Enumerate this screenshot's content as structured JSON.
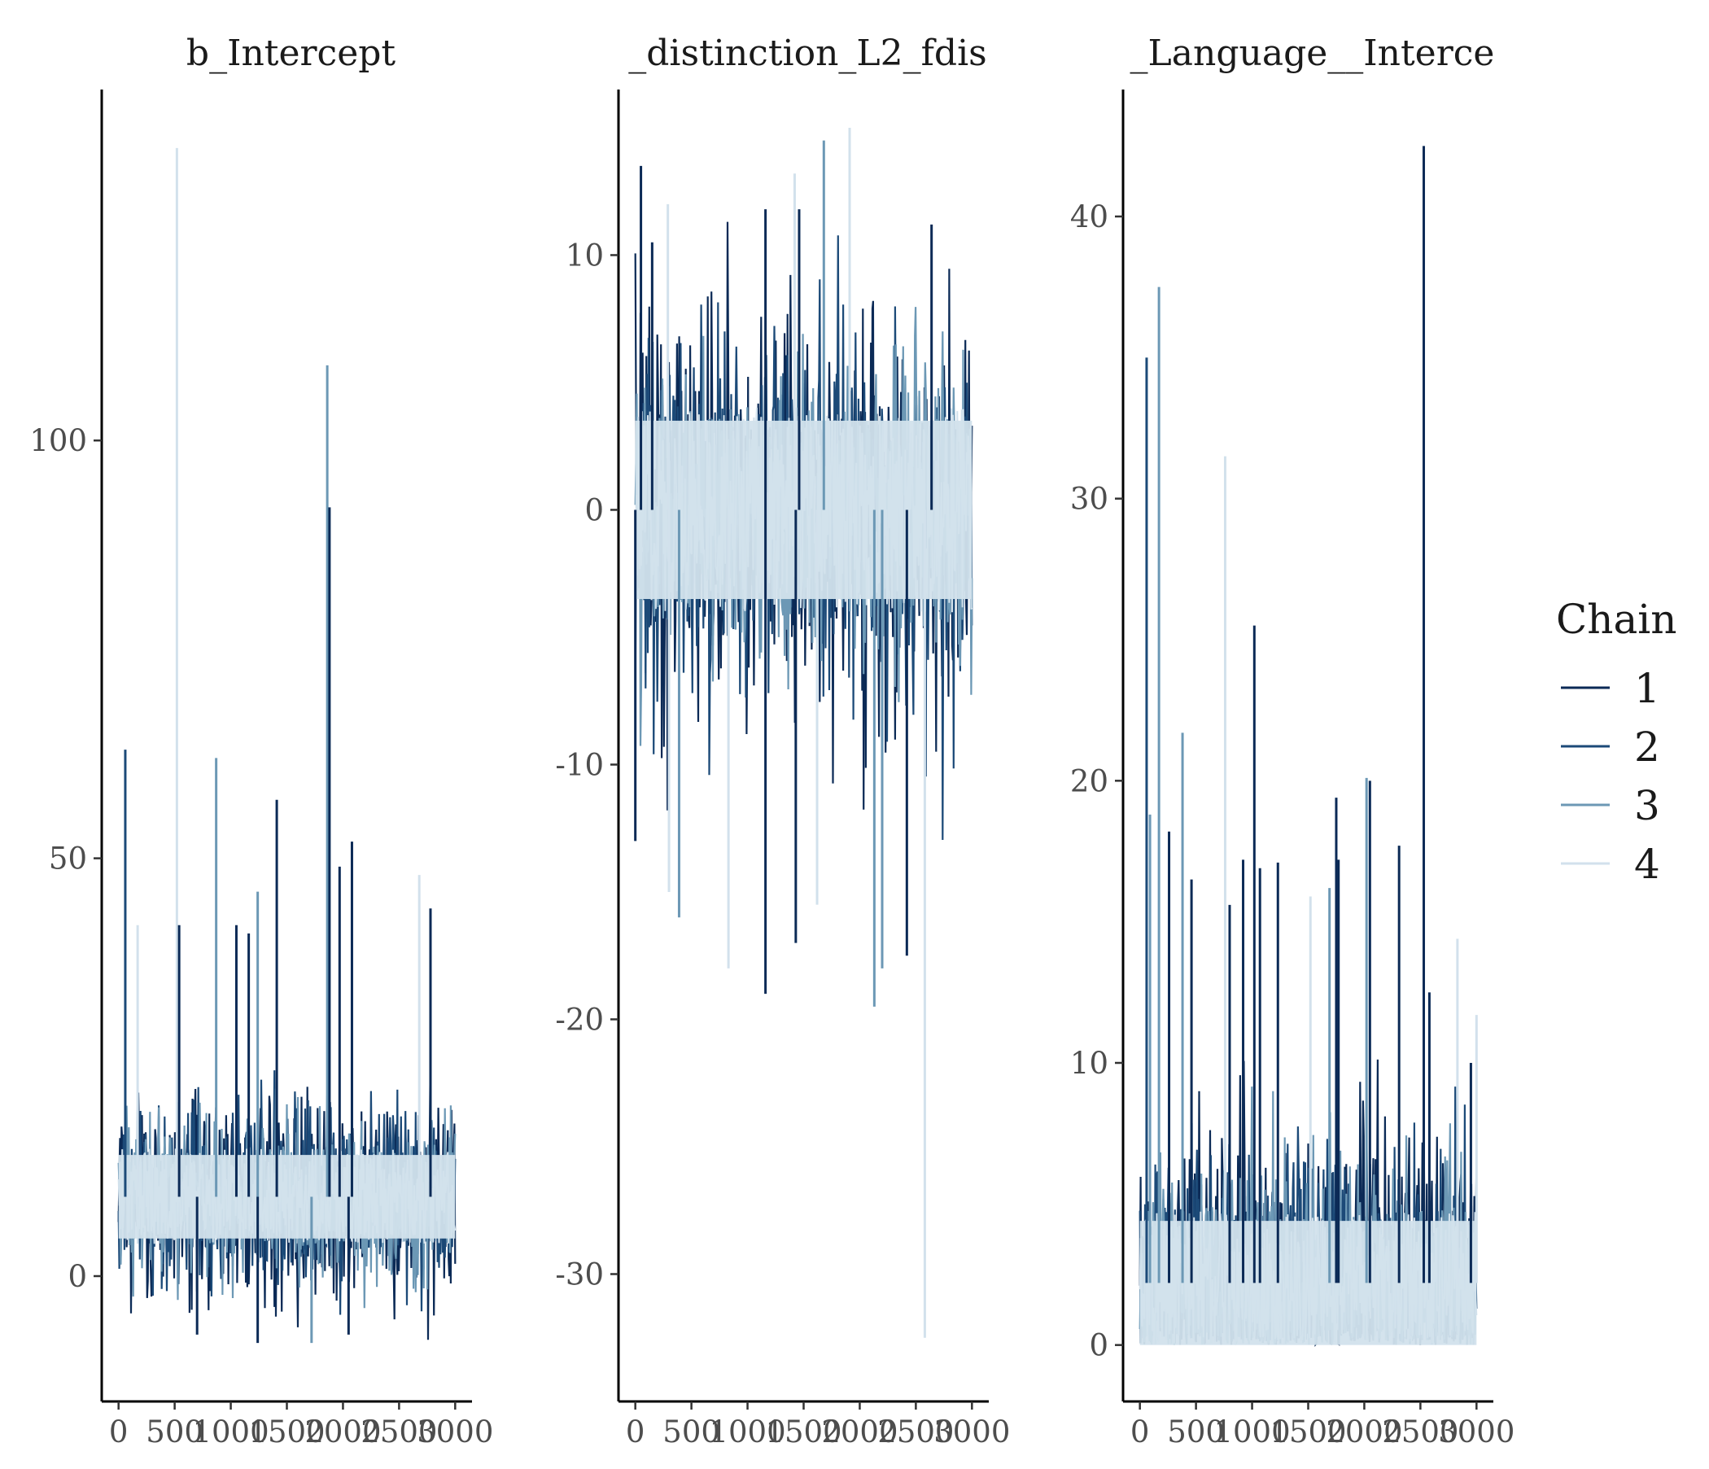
{
  "chart_data": {
    "type": "line",
    "legend": {
      "title": "Chain",
      "placement": "right",
      "entries": [
        "1",
        "2",
        "3",
        "4"
      ]
    },
    "colors": {
      "1": "#0b2a56",
      "2": "#1c4a78",
      "3": "#6c98b5",
      "4": "#d2e1ec"
    },
    "grid": false,
    "panels": [
      {
        "title": "b_Intercept",
        "xlim": [
          -150,
          3150
        ],
        "ylim": [
          -15,
          142
        ],
        "x_ticks": [
          0,
          500,
          1000,
          1500,
          2000,
          2500,
          3000
        ],
        "x_tick_labels": [
          "0",
          "500",
          "1000",
          "1500",
          "2000",
          "2500",
          "3000"
        ],
        "y_ticks": [
          0,
          50,
          100
        ],
        "y_tick_labels": [
          "0",
          "50",
          "100"
        ],
        "trace": {
          "band_center": 9.5,
          "band_half_width": 5,
          "noise_spread": 5.5,
          "min_value": -8,
          "spikes": [
            {
              "chain": "4",
              "x": 520,
              "y": 135
            },
            {
              "chain": "2",
              "x": 60,
              "y": 63
            },
            {
              "chain": "3",
              "x": 870,
              "y": 62
            },
            {
              "chain": "3",
              "x": 1860,
              "y": 109
            },
            {
              "chain": "1",
              "x": 1880,
              "y": 92
            },
            {
              "chain": "1",
              "x": 1410,
              "y": 57
            },
            {
              "chain": "1",
              "x": 2080,
              "y": 52
            },
            {
              "chain": "1",
              "x": 1970,
              "y": 49
            },
            {
              "chain": "4",
              "x": 2680,
              "y": 48
            },
            {
              "chain": "1",
              "x": 2780,
              "y": 44
            },
            {
              "chain": "1",
              "x": 540,
              "y": 42
            },
            {
              "chain": "4",
              "x": 170,
              "y": 42
            },
            {
              "chain": "1",
              "x": 1050,
              "y": 42
            },
            {
              "chain": "3",
              "x": 1240,
              "y": 46
            },
            {
              "chain": "1",
              "x": 1160,
              "y": 41
            },
            {
              "chain": "1",
              "x": 1240,
              "y": -8
            },
            {
              "chain": "3",
              "x": 1720,
              "y": -8
            },
            {
              "chain": "1",
              "x": 700,
              "y": -7
            },
            {
              "chain": "1",
              "x": 2050,
              "y": -7
            }
          ]
        }
      },
      {
        "title": "_distinction_L2_fdis",
        "xlim": [
          -150,
          3150
        ],
        "ylim": [
          -35,
          16.5
        ],
        "x_ticks": [
          0,
          500,
          1000,
          1500,
          2000,
          2500,
          3000
        ],
        "x_tick_labels": [
          "0",
          "500",
          "1000",
          "1500",
          "2000",
          "2500",
          "3000"
        ],
        "y_ticks": [
          -30,
          -20,
          -10,
          0,
          10
        ],
        "y_tick_labels": [
          "-30",
          "-20",
          "-10",
          "0",
          "10"
        ],
        "trace": {
          "band_center": 0,
          "band_half_width": 3.5,
          "noise_spread": 3.5,
          "min_value": -35,
          "spikes": [
            {
              "chain": "1",
              "x": 50,
              "y": 13.5
            },
            {
              "chain": "3",
              "x": 1680,
              "y": 14.5
            },
            {
              "chain": "4",
              "x": 1910,
              "y": 15
            },
            {
              "chain": "4",
              "x": 1420,
              "y": 13.2
            },
            {
              "chain": "4",
              "x": 290,
              "y": 12
            },
            {
              "chain": "1",
              "x": 1160,
              "y": 11.8
            },
            {
              "chain": "1",
              "x": 1460,
              "y": 11.8
            },
            {
              "chain": "1",
              "x": 2640,
              "y": 11.2
            },
            {
              "chain": "1",
              "x": 150,
              "y": 10.5
            },
            {
              "chain": "4",
              "x": 2580,
              "y": -32.5
            },
            {
              "chain": "1",
              "x": 1160,
              "y": -19
            },
            {
              "chain": "3",
              "x": 2130,
              "y": -19.5
            },
            {
              "chain": "4",
              "x": 830,
              "y": -18
            },
            {
              "chain": "3",
              "x": 2200,
              "y": -18
            },
            {
              "chain": "1",
              "x": 2420,
              "y": -17.5
            },
            {
              "chain": "1",
              "x": 1430,
              "y": -17
            },
            {
              "chain": "3",
              "x": 390,
              "y": -16
            },
            {
              "chain": "4",
              "x": 1620,
              "y": -15.5
            },
            {
              "chain": "4",
              "x": 300,
              "y": -15
            },
            {
              "chain": "1",
              "x": 0,
              "y": -13
            }
          ]
        }
      },
      {
        "title": "_Language__Interce",
        "xlim": [
          -150,
          3150
        ],
        "ylim": [
          -2,
          44.5
        ],
        "x_ticks": [
          0,
          500,
          1000,
          1500,
          2000,
          2500,
          3000
        ],
        "x_tick_labels": [
          "0",
          "500",
          "1000",
          "1500",
          "2000",
          "2500",
          "3000"
        ],
        "y_ticks": [
          0,
          10,
          20,
          30,
          40
        ],
        "y_tick_labels": [
          "0",
          "10",
          "20",
          "30",
          "40"
        ],
        "trace": {
          "band_center": 2.2,
          "band_half_width": 2.2,
          "noise_spread": 2.5,
          "min_value": 0,
          "spikes": [
            {
              "chain": "1",
              "x": 2530,
              "y": 42.5
            },
            {
              "chain": "3",
              "x": 170,
              "y": 37.5
            },
            {
              "chain": "2",
              "x": 60,
              "y": 35
            },
            {
              "chain": "4",
              "x": 760,
              "y": 31.5
            },
            {
              "chain": "1",
              "x": 1020,
              "y": 25.5
            },
            {
              "chain": "3",
              "x": 380,
              "y": 21.7
            },
            {
              "chain": "3",
              "x": 2020,
              "y": 20.1
            },
            {
              "chain": "1",
              "x": 2050,
              "y": 20
            },
            {
              "chain": "1",
              "x": 1750,
              "y": 19.4
            },
            {
              "chain": "1",
              "x": 260,
              "y": 18.2
            },
            {
              "chain": "3",
              "x": 90,
              "y": 18.8
            },
            {
              "chain": "1",
              "x": 2310,
              "y": 17.7
            },
            {
              "chain": "1",
              "x": 1770,
              "y": 17.2
            },
            {
              "chain": "1",
              "x": 920,
              "y": 17.2
            },
            {
              "chain": "1",
              "x": 1230,
              "y": 17.1
            },
            {
              "chain": "1",
              "x": 1070,
              "y": 16.9
            },
            {
              "chain": "1",
              "x": 460,
              "y": 16.5
            },
            {
              "chain": "3",
              "x": 1690,
              "y": 16.2
            },
            {
              "chain": "4",
              "x": 1520,
              "y": 15.9
            },
            {
              "chain": "1",
              "x": 800,
              "y": 15.6
            },
            {
              "chain": "4",
              "x": 2830,
              "y": 14.4
            },
            {
              "chain": "1",
              "x": 2580,
              "y": 12.5
            },
            {
              "chain": "4",
              "x": 3000,
              "y": 11.7
            },
            {
              "chain": "1",
              "x": 2950,
              "y": 10
            }
          ]
        }
      }
    ]
  }
}
